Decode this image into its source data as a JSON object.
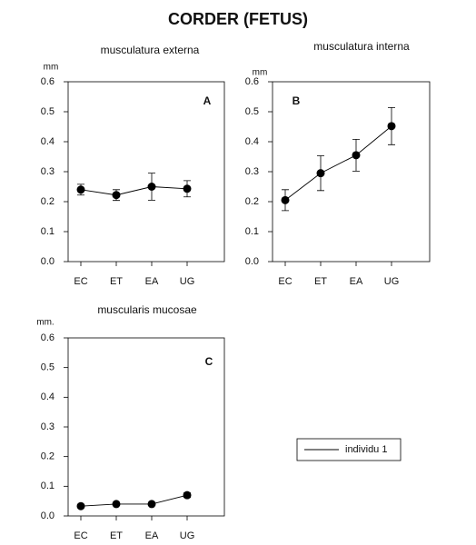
{
  "title": "CORDER (FETUS)",
  "chart_data": [
    {
      "type": "line",
      "title": "musculatura externa",
      "ylabel": "mm",
      "annotation": "A",
      "categories": [
        "EC",
        "ET",
        "EA",
        "UG"
      ],
      "series": [
        {
          "color": "#000000",
          "values": [
            0.24,
            0.222,
            0.25,
            0.243
          ],
          "errors": [
            0.018,
            0.018,
            0.045,
            0.027
          ]
        }
      ],
      "ylim": [
        0,
        0.6
      ],
      "yticks": [
        {
          "value": 0,
          "label": "0.0"
        },
        0.1,
        0.2,
        0.3,
        0.4,
        0.5,
        0.6
      ]
    },
    {
      "type": "line",
      "title": "musculatura interna",
      "ylabel": "mm",
      "annotation": "B",
      "categories": [
        "EC",
        "ET",
        "EA",
        "UG"
      ],
      "series": [
        {
          "color": "#000000",
          "values": [
            0.205,
            0.295,
            0.355,
            0.452
          ],
          "errors": [
            0.035,
            0.058,
            0.053,
            0.062
          ]
        }
      ],
      "ylim": [
        0,
        0.6
      ],
      "yticks": [
        {
          "value": 0,
          "label": "0.0"
        },
        0.1,
        0.2,
        0.3,
        0.4,
        0.5,
        0.6
      ]
    },
    {
      "type": "line",
      "title": "muscularis mucosae",
      "ylabel": "mm.",
      "annotation": "C",
      "categories": [
        "EC",
        "ET",
        "EA",
        "UG"
      ],
      "series": [
        {
          "name": "individu 1",
          "color": "#000000",
          "values": [
            0.033,
            0.04,
            0.04,
            0.07
          ],
          "errors": [
            0.005,
            0.005,
            0.005,
            0.008
          ]
        }
      ],
      "ylim": [
        0,
        0.6
      ],
      "yticks": [
        {
          "value": 0,
          "label": "0.0"
        },
        0.1,
        0.2,
        0.3,
        0.4,
        0.5,
        0.6
      ]
    }
  ]
}
